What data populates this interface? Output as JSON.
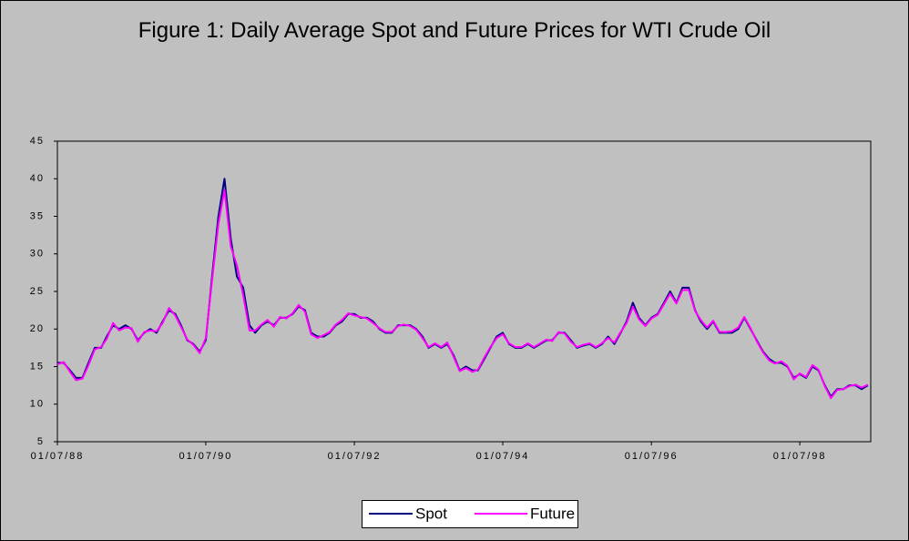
{
  "chart_data": {
    "type": "line",
    "title": "Figure 1: Daily Average Spot and Future Prices for WTI Crude Oil",
    "x": [
      "01/07/88",
      "01/08/88",
      "01/09/88",
      "01/10/88",
      "01/11/88",
      "01/12/88",
      "01/01/89",
      "01/02/89",
      "01/03/89",
      "01/04/89",
      "01/05/89",
      "01/06/89",
      "01/07/89",
      "01/08/89",
      "01/09/89",
      "01/10/89",
      "01/11/89",
      "01/12/89",
      "01/01/90",
      "01/02/90",
      "01/03/90",
      "01/04/90",
      "01/05/90",
      "01/06/90",
      "01/07/90",
      "01/08/90",
      "01/09/90",
      "01/10/90",
      "01/11/90",
      "01/12/90",
      "01/01/91",
      "01/02/91",
      "01/03/91",
      "01/04/91",
      "01/05/91",
      "01/06/91",
      "01/07/91",
      "01/08/91",
      "01/09/91",
      "01/10/91",
      "01/11/91",
      "01/12/91",
      "01/01/92",
      "01/02/92",
      "01/03/92",
      "01/04/92",
      "01/05/92",
      "01/06/92",
      "01/07/92",
      "01/08/92",
      "01/09/92",
      "01/10/92",
      "01/11/92",
      "01/12/92",
      "01/01/93",
      "01/02/93",
      "01/03/93",
      "01/04/93",
      "01/05/93",
      "01/06/93",
      "01/07/93",
      "01/08/93",
      "01/09/93",
      "01/10/93",
      "01/11/93",
      "01/12/93",
      "01/01/94",
      "01/02/94",
      "01/03/94",
      "01/04/94",
      "01/05/94",
      "01/06/94",
      "01/07/94",
      "01/08/94",
      "01/09/94",
      "01/10/94",
      "01/11/94",
      "01/12/94",
      "01/01/95",
      "01/02/95",
      "01/03/95",
      "01/04/95",
      "01/05/95",
      "01/06/95",
      "01/07/95",
      "01/08/95",
      "01/09/95",
      "01/10/95",
      "01/11/95",
      "01/12/95",
      "01/01/96",
      "01/02/96",
      "01/03/96",
      "01/04/96",
      "01/05/96",
      "01/06/96",
      "01/07/96",
      "01/08/96",
      "01/09/96",
      "01/10/96",
      "01/11/96",
      "01/12/96",
      "01/01/97",
      "01/02/97",
      "01/03/97",
      "01/04/97",
      "01/05/97",
      "01/06/97",
      "01/07/97",
      "01/08/97",
      "01/09/97",
      "01/10/97",
      "01/11/97",
      "01/12/97",
      "01/01/98",
      "01/02/98",
      "01/03/98",
      "01/04/98",
      "01/05/98",
      "01/06/98",
      "01/07/98",
      "01/08/98",
      "01/09/98",
      "01/10/98",
      "01/11/98",
      "01/12/98",
      "01/01/99",
      "01/02/99",
      "01/03/99",
      "01/04/99",
      "01/05/99",
      "01/06/99"
    ],
    "series": [
      {
        "name": "Spot",
        "color": "#000080",
        "values": [
          15.5,
          15.5,
          14.5,
          13.5,
          13.5,
          15.5,
          17.5,
          17.5,
          19.0,
          20.5,
          20.0,
          20.5,
          20.0,
          18.5,
          19.5,
          20.0,
          19.5,
          21.0,
          22.5,
          22.0,
          20.5,
          18.5,
          18.0,
          17.0,
          18.5,
          27.0,
          35.0,
          40.0,
          32.0,
          27.0,
          25.5,
          20.5,
          19.5,
          20.5,
          21.0,
          20.5,
          21.5,
          21.5,
          22.0,
          23.0,
          22.5,
          19.5,
          19.0,
          19.0,
          19.5,
          20.5,
          21.0,
          22.0,
          22.0,
          21.5,
          21.5,
          21.0,
          20.0,
          19.5,
          19.5,
          20.5,
          20.5,
          20.5,
          20.0,
          19.0,
          17.5,
          18.0,
          17.5,
          18.0,
          16.5,
          14.5,
          15.0,
          14.5,
          14.5,
          16.0,
          17.5,
          19.0,
          19.5,
          18.0,
          17.5,
          17.5,
          18.0,
          17.5,
          18.0,
          18.5,
          18.5,
          19.5,
          19.5,
          18.5,
          17.5,
          17.8,
          18.0,
          17.5,
          18.0,
          19.0,
          18.0,
          19.5,
          21.0,
          23.5,
          21.5,
          20.5,
          21.5,
          22.0,
          23.5,
          25.0,
          23.5,
          25.5,
          25.5,
          22.5,
          21.0,
          20.0,
          21.0,
          19.5,
          19.5,
          19.5,
          20.0,
          21.5,
          20.0,
          18.5,
          17.0,
          16.0,
          15.5,
          15.5,
          15.0,
          13.5,
          14.0,
          13.5,
          15.0,
          14.5,
          12.5,
          11.0,
          12.0,
          12.0,
          12.5,
          12.5,
          12.0,
          12.5
        ]
      },
      {
        "name": "Future",
        "color": "#ff00ff",
        "values": [
          15.3,
          15.6,
          14.3,
          13.2,
          13.4,
          15.2,
          17.3,
          17.6,
          18.7,
          20.8,
          19.8,
          20.2,
          20.1,
          18.3,
          19.6,
          19.8,
          19.7,
          20.8,
          22.8,
          21.8,
          20.3,
          18.6,
          17.9,
          16.8,
          18.8,
          26.5,
          34.0,
          38.5,
          31.0,
          28.5,
          24.5,
          19.8,
          19.8,
          20.6,
          21.2,
          20.3,
          21.6,
          21.4,
          22.1,
          23.2,
          22.3,
          19.3,
          18.8,
          19.2,
          19.6,
          20.6,
          21.2,
          22.1,
          21.8,
          21.6,
          21.4,
          20.8,
          20.1,
          19.6,
          19.6,
          20.4,
          20.6,
          20.4,
          19.9,
          18.8,
          17.6,
          18.1,
          17.6,
          18.2,
          16.3,
          14.4,
          14.8,
          14.3,
          14.6,
          16.2,
          17.6,
          18.8,
          19.3,
          18.1,
          17.6,
          17.6,
          18.1,
          17.6,
          18.1,
          18.6,
          18.4,
          19.6,
          19.4,
          18.3,
          17.6,
          17.9,
          18.1,
          17.6,
          18.1,
          18.8,
          18.2,
          19.6,
          20.8,
          23.0,
          21.3,
          20.4,
          21.4,
          21.9,
          23.3,
          24.7,
          23.4,
          25.2,
          25.2,
          22.4,
          21.2,
          20.2,
          21.1,
          19.6,
          19.6,
          19.7,
          20.2,
          21.6,
          20.1,
          18.4,
          16.9,
          15.8,
          15.4,
          15.7,
          15.1,
          13.3,
          14.1,
          13.6,
          15.2,
          14.6,
          12.4,
          10.8,
          11.9,
          12.0,
          12.4,
          12.6,
          12.2,
          12.6
        ]
      }
    ],
    "xlim": [
      "01/07/88",
      "15/06/99"
    ],
    "xticks": [
      "01/07/88",
      "01/07/90",
      "01/07/92",
      "01/07/94",
      "01/07/96",
      "01/07/98"
    ],
    "ylim": [
      5,
      45
    ],
    "yticks": [
      5,
      10,
      15,
      20,
      25,
      30,
      35,
      40,
      45
    ],
    "grid": false,
    "legend": "bottom"
  }
}
